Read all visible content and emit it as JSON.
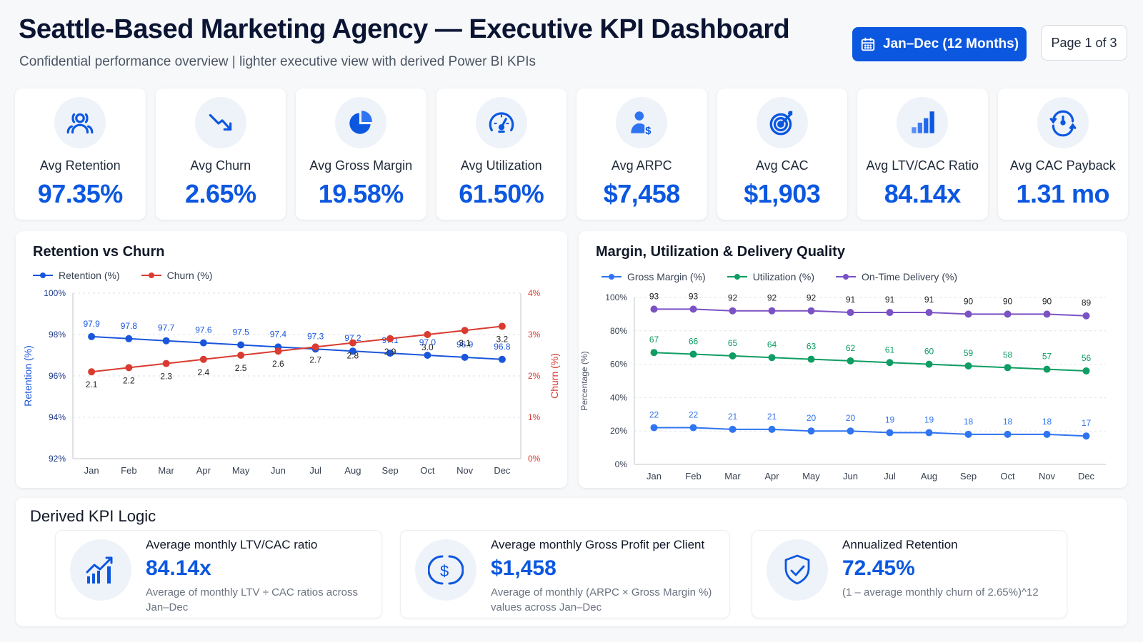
{
  "header": {
    "title": "Seattle-Based Marketing Agency — Executive KPI Dashboard",
    "subtitle": "Confidential performance overview | lighter executive view with derived Power BI KPIs",
    "date_range_label": "Jan–Dec (12 Months)",
    "date_icon": "calendar-icon",
    "page_label": "Page 1 of 3"
  },
  "colors": {
    "accent": "#0b57e0",
    "retention": "#1a56db",
    "churn": "#d93b30",
    "gross_margin": "#2f74f0",
    "utilization": "#0f9d63",
    "on_time": "#7b52c4"
  },
  "kpis": [
    {
      "label": "Avg Retention",
      "value": "97.35%",
      "icon": "users-icon"
    },
    {
      "label": "Avg Churn",
      "value": "2.65%",
      "icon": "trend-down-icon"
    },
    {
      "label": "Avg Gross Margin",
      "value": "19.58%",
      "icon": "pie-chart-icon"
    },
    {
      "label": "Avg Utilization",
      "value": "61.50%",
      "icon": "gauge-icon"
    },
    {
      "label": "Avg ARPC",
      "value": "$7,458",
      "icon": "user-dollar-icon"
    },
    {
      "label": "Avg CAC",
      "value": "$1,903",
      "icon": "target-icon"
    },
    {
      "label": "Avg LTV/CAC Ratio",
      "value": "84.14x",
      "icon": "bar-chart-icon"
    },
    {
      "label": "Avg CAC Payback",
      "value": "1.31 mo",
      "icon": "clock-cycle-icon"
    }
  ],
  "chart_data": [
    {
      "type": "line",
      "title": "Retention vs Churn",
      "categories": [
        "Jan",
        "Feb",
        "Mar",
        "Apr",
        "May",
        "Jun",
        "Jul",
        "Aug",
        "Sep",
        "Oct",
        "Nov",
        "Dec"
      ],
      "series": [
        {
          "name": "Retention (%)",
          "axis": "left",
          "values": [
            97.9,
            97.8,
            97.7,
            97.6,
            97.5,
            97.4,
            97.3,
            97.2,
            97.1,
            97.0,
            96.9,
            96.8
          ]
        },
        {
          "name": "Churn (%)",
          "axis": "right",
          "values": [
            2.1,
            2.2,
            2.3,
            2.4,
            2.5,
            2.6,
            2.7,
            2.8,
            2.9,
            3.0,
            3.1,
            3.2
          ]
        }
      ],
      "ylabel": "Retention (%)",
      "y2label": "Churn (%)",
      "ylim": [
        92,
        100
      ],
      "y2lim": [
        0,
        4
      ],
      "yticks": [
        "100%",
        "98%",
        "96%",
        "94%",
        "92%"
      ],
      "y2ticks": [
        "4%",
        "3%",
        "2%",
        "1%",
        "0%"
      ],
      "grid": true,
      "legend": "top-left"
    },
    {
      "type": "line",
      "title": "Margin, Utilization & Delivery Quality",
      "categories": [
        "Jan",
        "Feb",
        "Mar",
        "Apr",
        "May",
        "Jun",
        "Jul",
        "Aug",
        "Sep",
        "Oct",
        "Nov",
        "Dec"
      ],
      "series": [
        {
          "name": "Gross Margin (%)",
          "values": [
            22,
            22,
            21,
            21,
            20,
            20,
            19,
            19,
            18,
            18,
            18,
            17
          ]
        },
        {
          "name": "Utilization (%)",
          "values": [
            67,
            66,
            65,
            64,
            63,
            62,
            61,
            60,
            59,
            58,
            57,
            56
          ]
        },
        {
          "name": "On-Time Delivery (%)",
          "values": [
            93,
            93,
            92,
            92,
            92,
            91,
            91,
            91,
            90,
            90,
            90,
            89
          ]
        }
      ],
      "ylabel": "Percentage (%)",
      "ylim": [
        0,
        100
      ],
      "yticks": [
        "100%",
        "80%",
        "60%",
        "40%",
        "20%",
        "0%"
      ],
      "grid": true,
      "legend": "top-left"
    }
  ],
  "kpi_logic": {
    "title": "Derived KPI Logic",
    "cards": [
      {
        "heading": "Average monthly LTV/CAC ratio",
        "value": "84.14x",
        "description": "Average of monthly LTV ÷ CAC ratios across Jan–Dec",
        "icon": "growth-chart-icon"
      },
      {
        "heading": "Average monthly Gross Profit per Client",
        "value": "$1,458",
        "description": "Average of monthly (ARPC × Gross Margin %) values across Jan–Dec",
        "icon": "dollar-circle-icon"
      },
      {
        "heading": "Annualized Retention",
        "value": "72.45%",
        "description": "(1 – average monthly churn of 2.65%)^12",
        "icon": "shield-check-icon"
      }
    ]
  }
}
